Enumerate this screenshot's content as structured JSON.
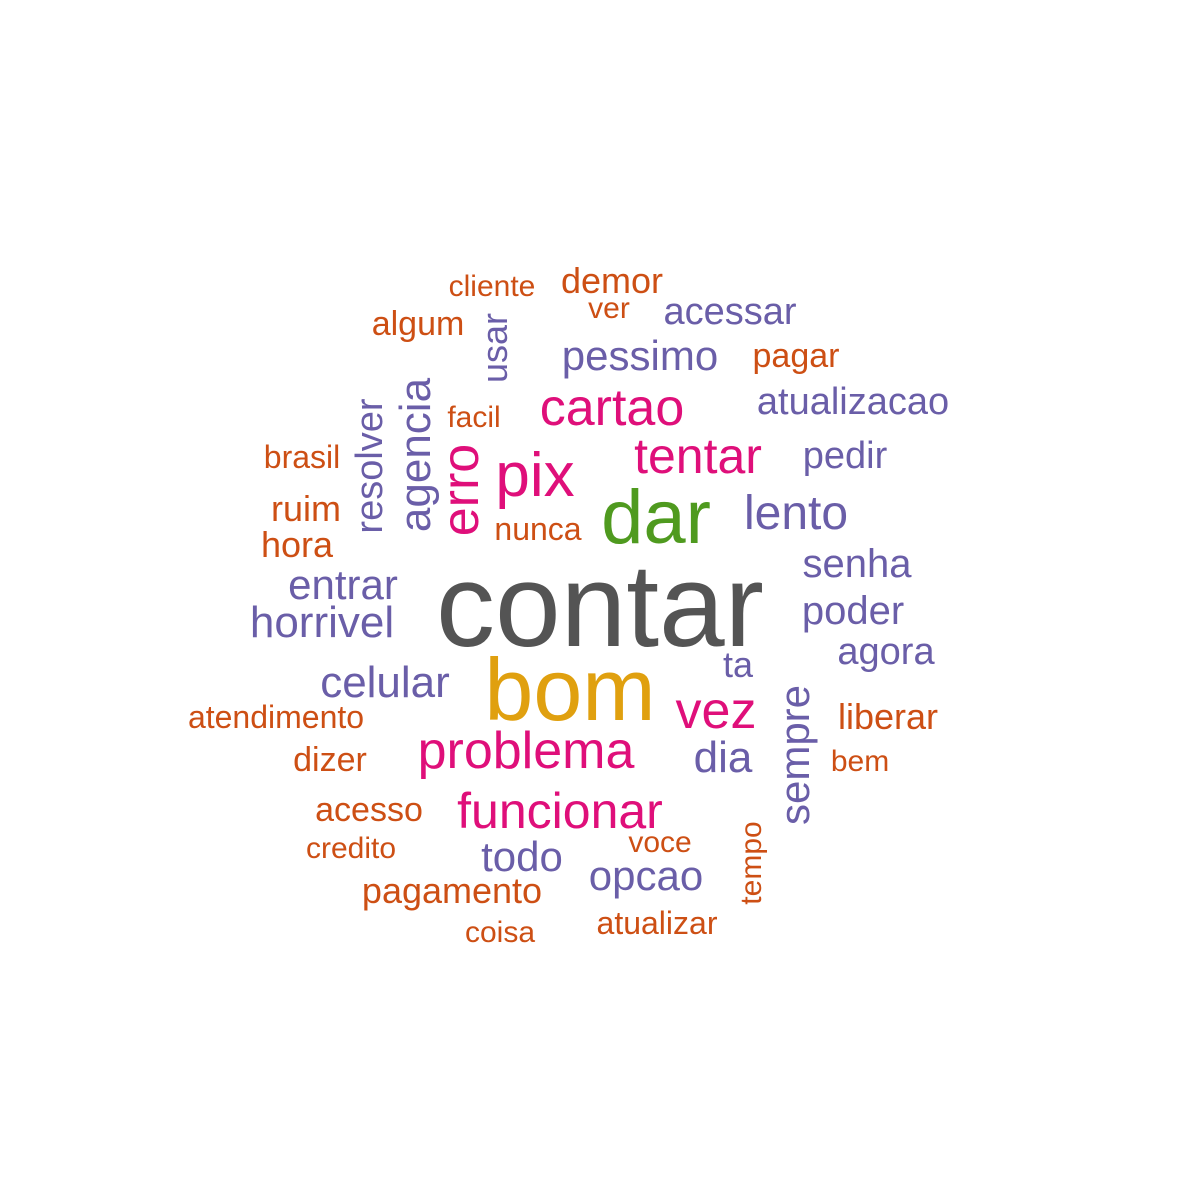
{
  "palette": {
    "gray": "#545454",
    "gold": "#e0a00f",
    "green": "#4f9a1f",
    "magenta": "#df0f7a",
    "purple": "#6a5ea8",
    "orange": "#cd4f14"
  },
  "words": {
    "contar": {
      "text": "contar",
      "color": "#545454"
    },
    "bom": {
      "text": "bom",
      "color": "#e0a00f"
    },
    "dar": {
      "text": "dar",
      "color": "#4f9a1f"
    },
    "pix": {
      "text": "pix",
      "color": "#df0f7a"
    },
    "cartao": {
      "text": "cartao",
      "color": "#df0f7a"
    },
    "tentar": {
      "text": "tentar",
      "color": "#df0f7a"
    },
    "erro": {
      "text": "erro",
      "color": "#df0f7a"
    },
    "vez": {
      "text": "vez",
      "color": "#df0f7a"
    },
    "problema": {
      "text": "problema",
      "color": "#df0f7a"
    },
    "funcionar": {
      "text": "funcionar",
      "color": "#df0f7a"
    },
    "pessimo": {
      "text": "pessimo",
      "color": "#6a5ea8"
    },
    "acessar": {
      "text": "acessar",
      "color": "#6a5ea8"
    },
    "atualizacao": {
      "text": "atualizacao",
      "color": "#6a5ea8"
    },
    "pedir": {
      "text": "pedir",
      "color": "#6a5ea8"
    },
    "lento": {
      "text": "lento",
      "color": "#6a5ea8"
    },
    "senha": {
      "text": "senha",
      "color": "#6a5ea8"
    },
    "poder": {
      "text": "poder",
      "color": "#6a5ea8"
    },
    "agora": {
      "text": "agora",
      "color": "#6a5ea8"
    },
    "ta": {
      "text": "ta",
      "color": "#6a5ea8"
    },
    "sempre": {
      "text": "sempre",
      "color": "#6a5ea8"
    },
    "dia": {
      "text": "dia",
      "color": "#6a5ea8"
    },
    "opcao": {
      "text": "opcao",
      "color": "#6a5ea8"
    },
    "todo": {
      "text": "todo",
      "color": "#6a5ea8"
    },
    "celular": {
      "text": "celular",
      "color": "#6a5ea8"
    },
    "horrivel": {
      "text": "horrivel",
      "color": "#6a5ea8"
    },
    "entrar": {
      "text": "entrar",
      "color": "#6a5ea8"
    },
    "agencia": {
      "text": "agencia",
      "color": "#6a5ea8"
    },
    "resolver": {
      "text": "resolver",
      "color": "#6a5ea8"
    },
    "usar": {
      "text": "usar",
      "color": "#6a5ea8"
    },
    "cliente": {
      "text": "cliente",
      "color": "#cd4f14"
    },
    "demor": {
      "text": "demor",
      "color": "#cd4f14"
    },
    "ver": {
      "text": "ver",
      "color": "#cd4f14"
    },
    "algum": {
      "text": "algum",
      "color": "#cd4f14"
    },
    "pagar": {
      "text": "pagar",
      "color": "#cd4f14"
    },
    "facil": {
      "text": "facil",
      "color": "#cd4f14"
    },
    "brasil": {
      "text": "brasil",
      "color": "#cd4f14"
    },
    "ruim": {
      "text": "ruim",
      "color": "#cd4f14"
    },
    "hora": {
      "text": "hora",
      "color": "#cd4f14"
    },
    "nunca": {
      "text": "nunca",
      "color": "#cd4f14"
    },
    "atendimento": {
      "text": "atendimento",
      "color": "#cd4f14"
    },
    "dizer": {
      "text": "dizer",
      "color": "#cd4f14"
    },
    "acesso": {
      "text": "acesso",
      "color": "#cd4f14"
    },
    "credito": {
      "text": "credito",
      "color": "#cd4f14"
    },
    "pagamento": {
      "text": "pagamento",
      "color": "#cd4f14"
    },
    "coisa": {
      "text": "coisa",
      "color": "#cd4f14"
    },
    "atualizar": {
      "text": "atualizar",
      "color": "#cd4f14"
    },
    "voce": {
      "text": "voce",
      "color": "#cd4f14"
    },
    "tempo": {
      "text": "tempo",
      "color": "#cd4f14"
    },
    "liberar": {
      "text": "liberar",
      "color": "#cd4f14"
    },
    "bem": {
      "text": "bem",
      "color": "#cd4f14"
    }
  }
}
